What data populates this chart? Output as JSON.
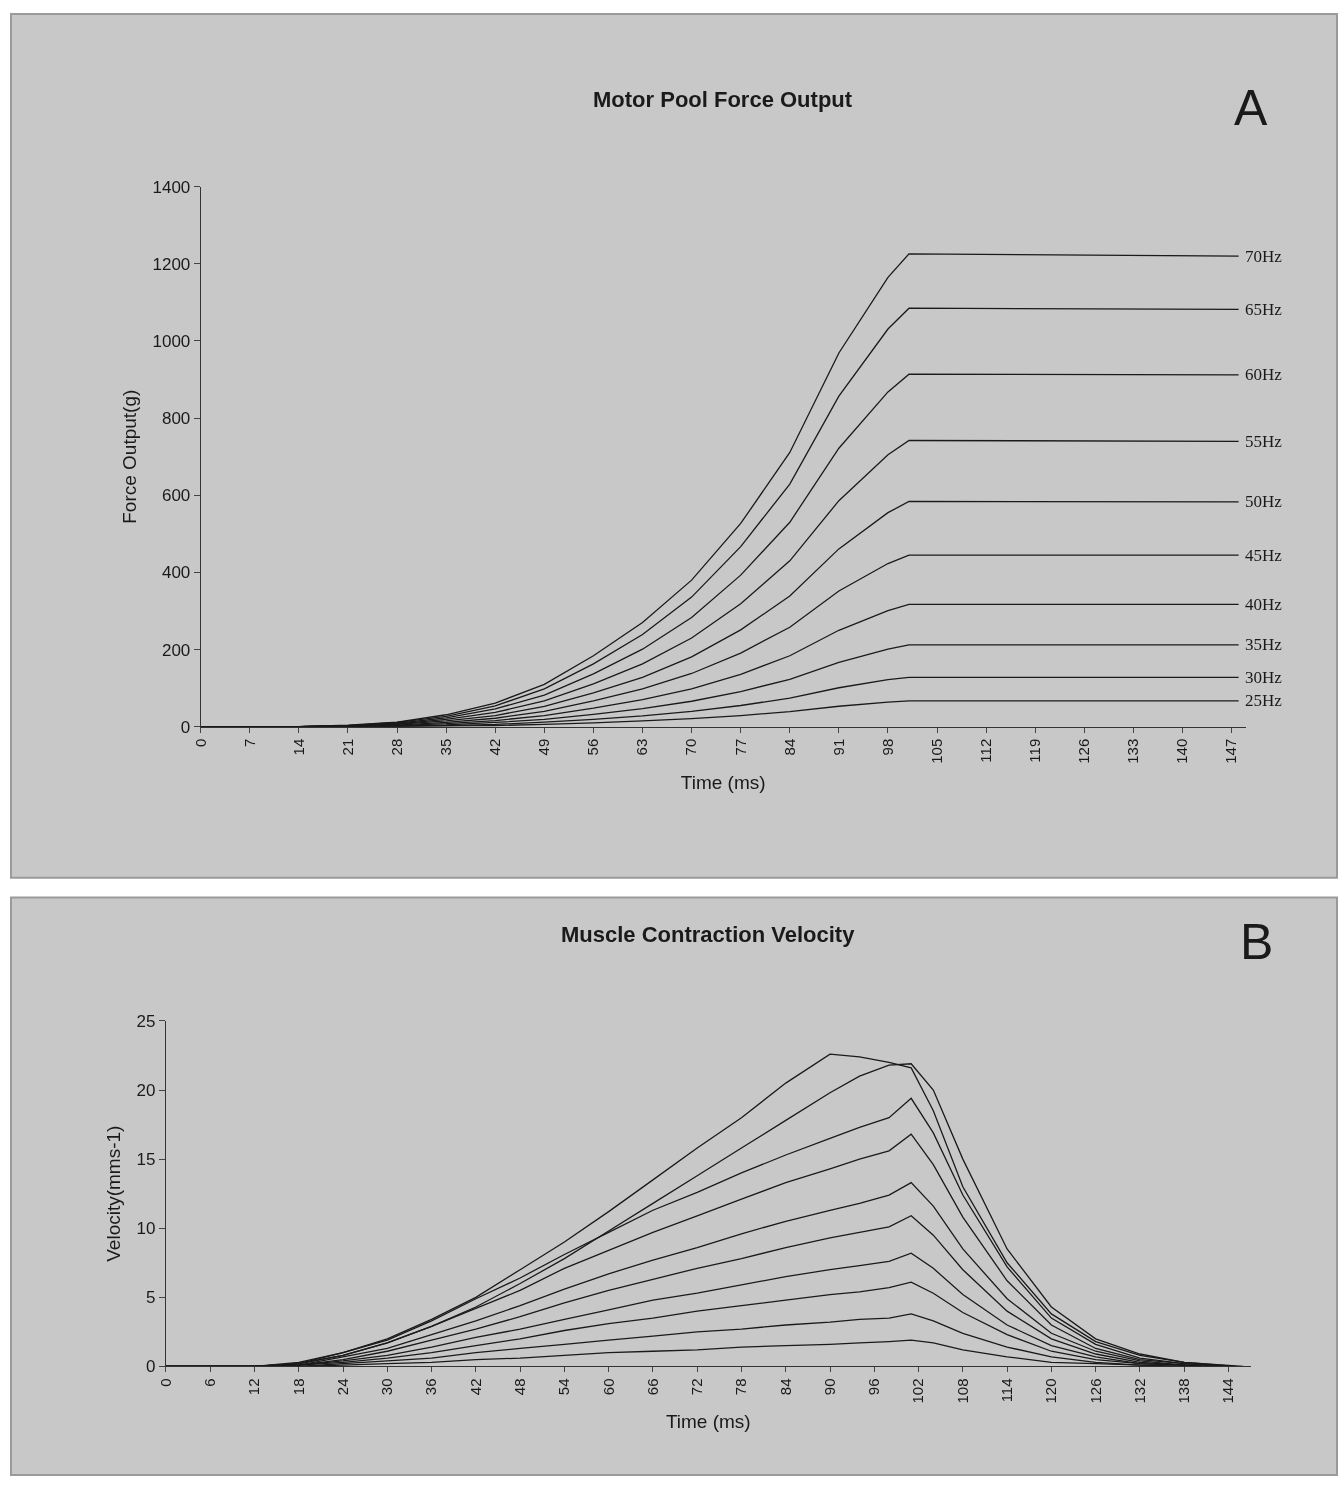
{
  "chart_data": [
    {
      "type": "line",
      "title": "Motor Pool Force Output",
      "xlabel": "Time (ms)",
      "ylabel": "Force Output(g)",
      "annotations": [
        "A"
      ],
      "x": [
        0,
        7,
        14,
        21,
        28,
        35,
        42,
        49,
        56,
        63,
        70,
        77,
        84,
        91,
        98,
        101,
        148
      ],
      "series": [
        {
          "name": "70Hz",
          "color": "#1a1a1a",
          "values": [
            0,
            0,
            0,
            4,
            12,
            31,
            61,
            110,
            184,
            270,
            380,
            527,
            711,
            969,
            1165,
            1226,
            1220
          ]
        },
        {
          "name": "65Hz",
          "color": "#1a1a1a",
          "values": [
            0,
            0,
            0,
            3,
            11,
            27,
            54,
            98,
            163,
            239,
            336,
            467,
            629,
            857,
            1031,
            1085,
            1082
          ]
        },
        {
          "name": "60Hz",
          "color": "#1a1a1a",
          "values": [
            0,
            0,
            0,
            3,
            9,
            23,
            46,
            82,
            137,
            201,
            283,
            393,
            530,
            722,
            868,
            914,
            912
          ]
        },
        {
          "name": "55Hz",
          "color": "#1a1a1a",
          "values": [
            0,
            0,
            0,
            2,
            7,
            19,
            37,
            67,
            111,
            163,
            230,
            319,
            430,
            586,
            705,
            742,
            740
          ]
        },
        {
          "name": "50Hz",
          "color": "#1a1a1a",
          "values": [
            0,
            0,
            0,
            2,
            6,
            15,
            29,
            53,
            88,
            128,
            181,
            251,
            339,
            461,
            555,
            584,
            583
          ]
        },
        {
          "name": "45Hz",
          "color": "#1a1a1a",
          "values": [
            0,
            0,
            0,
            1,
            4,
            11,
            22,
            40,
            67,
            98,
            138,
            191,
            258,
            352,
            423,
            445,
            445
          ]
        },
        {
          "name": "40Hz",
          "color": "#1a1a1a",
          "values": [
            0,
            0,
            0,
            1,
            3,
            8,
            16,
            29,
            48,
            70,
            98,
            136,
            184,
            250,
            301,
            317,
            317
          ]
        },
        {
          "name": "35Hz",
          "color": "#1a1a1a",
          "values": [
            0,
            0,
            0,
            1,
            2,
            5,
            11,
            19,
            32,
            47,
            66,
            91,
            123,
            167,
            201,
            212,
            212
          ]
        },
        {
          "name": "30Hz",
          "color": "#1a1a1a",
          "values": [
            0,
            0,
            0,
            0,
            1,
            3,
            6,
            12,
            19,
            28,
            40,
            55,
            74,
            101,
            122,
            128,
            128
          ]
        },
        {
          "name": "25Hz",
          "color": "#1a1a1a",
          "values": [
            0,
            0,
            0,
            0,
            1,
            2,
            3,
            6,
            10,
            15,
            21,
            29,
            39,
            53,
            64,
            67,
            67
          ]
        }
      ],
      "xlim": [
        0,
        149
      ],
      "xticks": [
        0,
        7,
        14,
        21,
        28,
        35,
        42,
        49,
        56,
        63,
        70,
        77,
        84,
        91,
        98,
        105,
        112,
        119,
        126,
        133,
        140,
        147
      ],
      "ylim": [
        0,
        1400
      ],
      "yticks": [
        0,
        200,
        400,
        600,
        800,
        1000,
        1200,
        1400
      ],
      "grid": false,
      "legend": false
    },
    {
      "type": "line",
      "title": "Muscle Contraction Velocity",
      "xlabel": "Time (ms)",
      "ylabel": "Velocity(mms-1)",
      "annotations": [
        "B"
      ],
      "series": [
        {
          "x": [
            0,
            12,
            18,
            24,
            30,
            36,
            42,
            48,
            54,
            60,
            66,
            72,
            78,
            84,
            90,
            94,
            98,
            101,
            104,
            108,
            114,
            120,
            126,
            132,
            138,
            146
          ],
          "color": "#1a1a1a",
          "values": [
            0,
            0,
            0.3,
            1,
            2,
            3.4,
            5,
            7,
            9,
            11.2,
            13.5,
            15.8,
            18,
            20.5,
            22.6,
            22.4,
            22,
            21.6,
            18.5,
            13,
            7.5,
            3.8,
            1.8,
            0.8,
            0.3,
            0
          ]
        },
        {
          "x": [
            0,
            12,
            18,
            24,
            30,
            36,
            42,
            48,
            54,
            60,
            66,
            72,
            78,
            84,
            90,
            94,
            98,
            101,
            104,
            108,
            114,
            120,
            126,
            132,
            138,
            145
          ],
          "color": "#1a1a1a",
          "values": [
            0,
            0,
            0.2,
            0.8,
            1.7,
            2.9,
            4.3,
            6,
            7.8,
            9.8,
            11.8,
            13.8,
            15.8,
            17.8,
            19.8,
            21,
            21.8,
            21.9,
            20,
            15,
            8.5,
            4.3,
            2,
            0.9,
            0.3,
            0
          ]
        },
        {
          "x": [
            0,
            12,
            18,
            24,
            30,
            36,
            42,
            48,
            54,
            60,
            66,
            72,
            78,
            84,
            90,
            94,
            98,
            101,
            104,
            108,
            114,
            120,
            126,
            132,
            138,
            144
          ],
          "color": "#1a1a1a",
          "values": [
            0,
            0,
            0.2,
            1.0,
            1.9,
            3.3,
            4.9,
            6.4,
            8.1,
            9.7,
            11.3,
            12.6,
            14.0,
            15.3,
            16.5,
            17.3,
            18.0,
            19.4,
            16.9,
            12.4,
            7.2,
            3.5,
            1.6,
            0.6,
            0.2,
            0
          ]
        },
        {
          "x": [
            0,
            12,
            18,
            24,
            30,
            36,
            42,
            48,
            54,
            60,
            66,
            72,
            78,
            84,
            90,
            94,
            98,
            101,
            104,
            108,
            114,
            120,
            126,
            132,
            138,
            143
          ],
          "color": "#1a1a1a",
          "values": [
            0,
            0,
            0.2,
            0.8,
            1.7,
            2.9,
            4.2,
            5.5,
            7.1,
            8.4,
            9.7,
            10.9,
            12.1,
            13.3,
            14.3,
            15.0,
            15.6,
            16.8,
            14.6,
            10.8,
            6.2,
            3.0,
            1.3,
            0.5,
            0.2,
            0
          ]
        },
        {
          "x": [
            0,
            12,
            18,
            24,
            30,
            36,
            42,
            48,
            54,
            60,
            66,
            72,
            78,
            84,
            90,
            94,
            98,
            101,
            104,
            108,
            114,
            120,
            126,
            132,
            138,
            142
          ],
          "color": "#1a1a1a",
          "values": [
            0,
            0,
            0.1,
            0.7,
            1.3,
            2.3,
            3.3,
            4.4,
            5.6,
            6.7,
            7.7,
            8.6,
            9.6,
            10.5,
            11.3,
            11.8,
            12.4,
            13.3,
            11.6,
            8.5,
            4.9,
            2.4,
            1.1,
            0.4,
            0.1,
            0
          ]
        },
        {
          "x": [
            0,
            12,
            18,
            24,
            30,
            36,
            42,
            48,
            54,
            60,
            66,
            72,
            78,
            84,
            90,
            94,
            98,
            101,
            104,
            108,
            114,
            120,
            126,
            132,
            138,
            141
          ],
          "color": "#1a1a1a",
          "values": [
            0,
            0,
            0.1,
            0.5,
            1.1,
            1.9,
            2.7,
            3.6,
            4.6,
            5.5,
            6.3,
            7.1,
            7.8,
            8.6,
            9.3,
            9.7,
            10.1,
            10.9,
            9.5,
            7.0,
            4.0,
            2.0,
            0.9,
            0.3,
            0.1,
            0
          ]
        },
        {
          "x": [
            0,
            12,
            18,
            24,
            30,
            36,
            42,
            48,
            54,
            60,
            66,
            72,
            78,
            84,
            90,
            94,
            98,
            101,
            104,
            108,
            114,
            120,
            126,
            132,
            138,
            140
          ],
          "color": "#1a1a1a",
          "values": [
            0,
            0,
            0.1,
            0.4,
            0.8,
            1.4,
            2.1,
            2.7,
            3.4,
            4.1,
            4.8,
            5.3,
            5.9,
            6.5,
            7.0,
            7.3,
            7.6,
            8.2,
            7.1,
            5.2,
            3.0,
            1.5,
            0.7,
            0.2,
            0.1,
            0
          ]
        },
        {
          "x": [
            0,
            12,
            18,
            24,
            30,
            36,
            42,
            48,
            54,
            60,
            66,
            72,
            78,
            84,
            90,
            94,
            98,
            101,
            104,
            108,
            114,
            120,
            126,
            132,
            138,
            139.5
          ],
          "color": "#1a1a1a",
          "values": [
            0,
            0,
            0.1,
            0.3,
            0.6,
            1.0,
            1.5,
            2.0,
            2.6,
            3.1,
            3.5,
            4.0,
            4.4,
            4.8,
            5.2,
            5.4,
            5.7,
            6.1,
            5.3,
            3.9,
            2.3,
            1.1,
            0.5,
            0.2,
            0.1,
            0
          ]
        },
        {
          "x": [
            0,
            12,
            18,
            24,
            30,
            36,
            42,
            48,
            54,
            60,
            66,
            72,
            78,
            84,
            90,
            94,
            98,
            101,
            104,
            108,
            114,
            120,
            126,
            132,
            138,
            139
          ],
          "color": "#1a1a1a",
          "values": [
            0,
            0,
            0,
            0.2,
            0.4,
            0.6,
            1.0,
            1.3,
            1.6,
            1.9,
            2.2,
            2.5,
            2.7,
            3.0,
            3.2,
            3.4,
            3.5,
            3.8,
            3.3,
            2.4,
            1.4,
            0.7,
            0.3,
            0.1,
            0,
            0
          ]
        },
        {
          "x": [
            0,
            12,
            18,
            24,
            30,
            36,
            42,
            48,
            54,
            60,
            66,
            72,
            78,
            84,
            90,
            94,
            98,
            101,
            104,
            108,
            114,
            120,
            126,
            132,
            138,
            138.5
          ],
          "color": "#1a1a1a",
          "values": [
            0,
            0,
            0,
            0.1,
            0.2,
            0.3,
            0.5,
            0.6,
            0.8,
            1.0,
            1.1,
            1.2,
            1.4,
            1.5,
            1.6,
            1.7,
            1.8,
            1.9,
            1.7,
            1.2,
            0.7,
            0.3,
            0.2,
            0.1,
            0,
            0
          ]
        }
      ],
      "xlim": [
        0,
        147
      ],
      "xticks": [
        0,
        6,
        12,
        18,
        24,
        30,
        36,
        42,
        48,
        54,
        60,
        66,
        72,
        78,
        84,
        90,
        96,
        102,
        108,
        114,
        120,
        126,
        132,
        138,
        144
      ],
      "ylim": [
        0,
        25
      ],
      "yticks": [
        0,
        5,
        10,
        15,
        20,
        25
      ],
      "grid": false,
      "legend": false
    }
  ]
}
